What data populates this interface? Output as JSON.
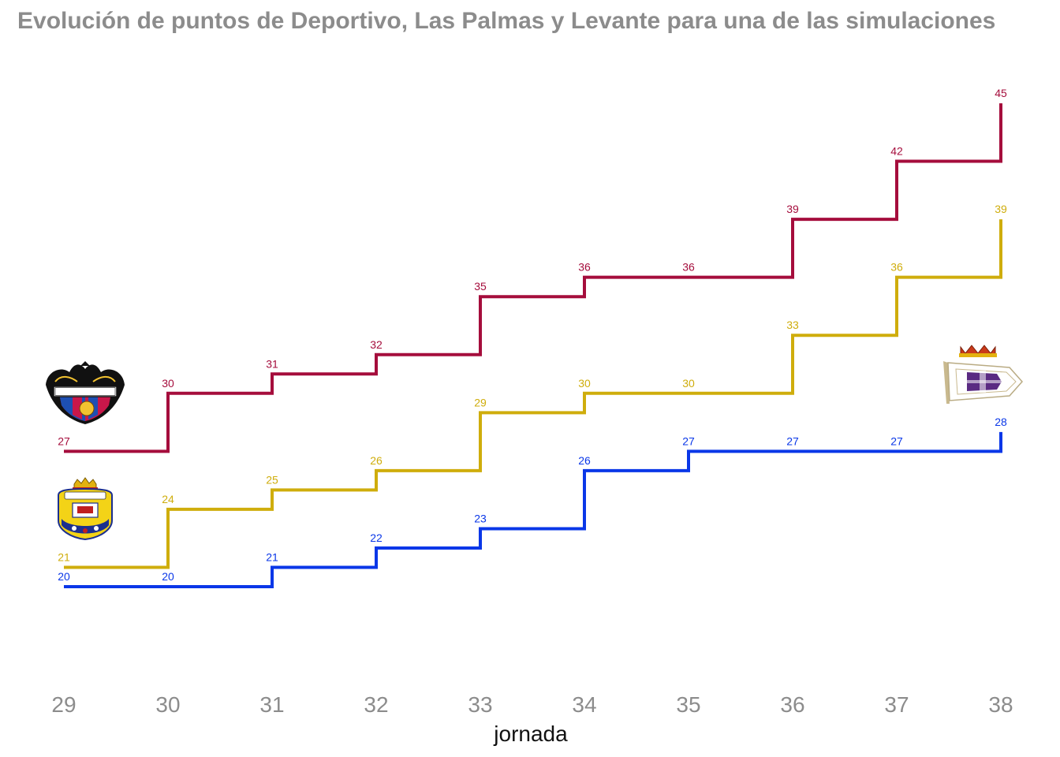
{
  "chart_data": {
    "type": "line",
    "step": true,
    "title": "Evolución de puntos de Deportivo, Las Palmas y Levante para una de las simulaciones",
    "xlabel": "jornada",
    "ylabel": "",
    "x": [
      29,
      30,
      31,
      32,
      33,
      34,
      35,
      36,
      37,
      38
    ],
    "xlim": [
      29,
      38
    ],
    "ylim": [
      20,
      45
    ],
    "grid": false,
    "legend": "none",
    "series": [
      {
        "team": "levante",
        "color": "#a50d3c",
        "values": [
          27,
          30,
          31,
          32,
          35,
          36,
          36,
          39,
          42,
          45
        ]
      },
      {
        "team": "las-palmas",
        "color": "#cfad0c",
        "values": [
          21,
          24,
          25,
          26,
          29,
          30,
          30,
          33,
          36,
          39
        ]
      },
      {
        "team": "deportivo",
        "color": "#0a37e8",
        "values": [
          20,
          20,
          21,
          22,
          23,
          26,
          27,
          27,
          27,
          28
        ]
      }
    ],
    "logos": [
      {
        "team": "levante",
        "icon": "levante-crest-icon"
      },
      {
        "team": "las-palmas",
        "icon": "las-palmas-crest-icon"
      },
      {
        "team": "deportivo",
        "icon": "deportivo-crest-icon"
      }
    ]
  }
}
